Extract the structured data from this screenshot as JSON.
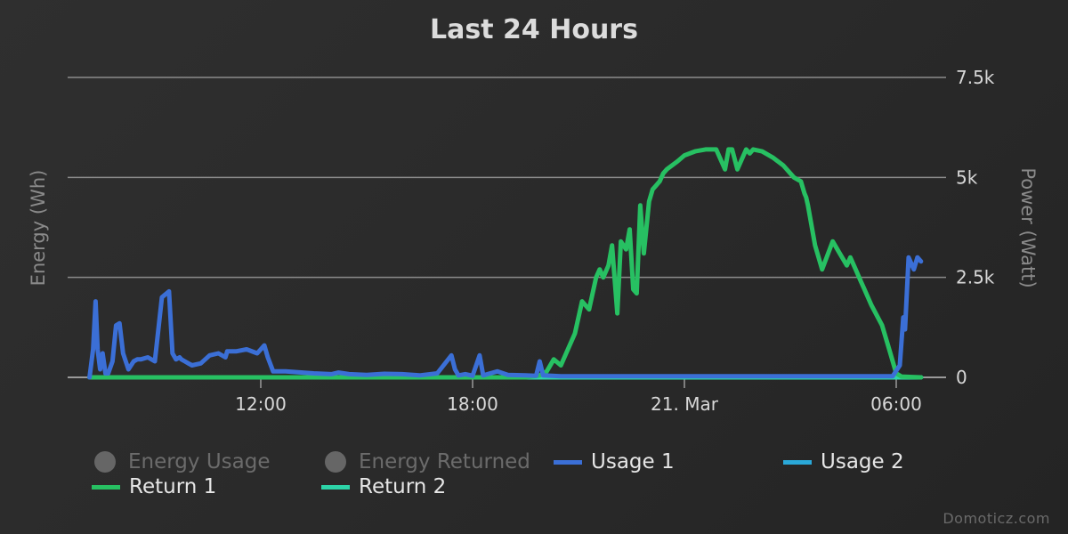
{
  "chart_data": {
    "type": "line",
    "title": "Last 24 Hours",
    "ylabel_left": "Energy (Wh)",
    "ylabel_right": "Power (Watt)",
    "ylim": [
      0,
      7500
    ],
    "yticks": [
      {
        "value": 0,
        "label": "0"
      },
      {
        "value": 2500,
        "label": "2.5k"
      },
      {
        "value": 5000,
        "label": "5k"
      },
      {
        "value": 7500,
        "label": "7.5k"
      }
    ],
    "xlim": [
      7.0,
      31.5
    ],
    "xticks": [
      {
        "value": 12,
        "label": "12:00"
      },
      {
        "value": 18,
        "label": "18:00"
      },
      {
        "value": 24,
        "label": "21. Mar"
      },
      {
        "value": 30,
        "label": "06:00"
      }
    ],
    "grid": true,
    "legend_position": "bottom",
    "legend": [
      {
        "label": "Energy Usage",
        "hidden": true
      },
      {
        "label": "Energy Returned",
        "hidden": true
      },
      {
        "label": "Usage 1",
        "hidden": false
      },
      {
        "label": "Usage 2",
        "hidden": false
      },
      {
        "label": "Return 1",
        "hidden": false
      },
      {
        "label": "Return 2",
        "hidden": false
      }
    ],
    "series": [
      {
        "name": "Usage 1",
        "color": "#3b6fd6",
        "x": [
          7.15,
          7.25,
          7.32,
          7.38,
          7.45,
          7.52,
          7.6,
          7.68,
          7.8,
          7.9,
          8.0,
          8.1,
          8.25,
          8.4,
          8.5,
          8.6,
          8.8,
          9.0,
          9.2,
          9.4,
          9.5,
          9.6,
          9.7,
          9.75,
          9.85,
          9.95,
          10.05,
          10.3,
          10.55,
          10.8,
          11.0,
          11.05,
          11.3,
          11.6,
          11.9,
          12.1,
          12.2,
          12.35,
          12.5,
          12.7,
          13.5,
          14.0,
          14.2,
          14.5,
          15.0,
          15.5,
          16.0,
          16.5,
          17.0,
          17.4,
          17.5,
          17.6,
          17.8,
          18.0,
          18.2,
          18.3,
          18.5,
          18.7,
          19.0,
          19.5,
          19.8,
          19.9,
          20.0,
          20.5,
          22.0,
          25.0,
          28.0,
          29.9,
          30.1,
          30.2,
          30.25,
          30.35,
          30.5,
          30.6,
          30.7
        ],
        "values": [
          0,
          700,
          1900,
          700,
          200,
          600,
          100,
          100,
          400,
          1300,
          1350,
          600,
          200,
          400,
          450,
          450,
          500,
          400,
          2000,
          2150,
          600,
          450,
          500,
          450,
          400,
          350,
          300,
          350,
          550,
          600,
          500,
          650,
          650,
          700,
          600,
          800,
          500,
          150,
          150,
          150,
          100,
          80,
          120,
          80,
          60,
          90,
          80,
          50,
          100,
          550,
          200,
          50,
          80,
          40,
          550,
          50,
          100,
          150,
          60,
          50,
          40,
          400,
          50,
          30,
          30,
          30,
          30,
          30,
          300,
          1500,
          1200,
          3000,
          2700,
          3000,
          2900
        ]
      },
      {
        "name": "Usage 2",
        "color": "#2aa8d8",
        "x": [
          7.15,
          30.7
        ],
        "values": [
          0,
          0
        ]
      },
      {
        "name": "Return 1",
        "color": "#27c062",
        "x": [
          7.15,
          19.5,
          19.9,
          20.1,
          20.3,
          20.5,
          20.7,
          20.9,
          21.1,
          21.3,
          21.5,
          21.6,
          21.7,
          21.85,
          21.95,
          22.1,
          22.2,
          22.35,
          22.45,
          22.55,
          22.65,
          22.75,
          22.85,
          23.0,
          23.1,
          23.2,
          23.3,
          23.4,
          23.5,
          23.8,
          24.0,
          24.3,
          24.6,
          24.9,
          25.15,
          25.25,
          25.35,
          25.5,
          25.75,
          25.85,
          25.95,
          26.2,
          26.5,
          26.8,
          27.1,
          27.3,
          27.4,
          27.45,
          27.5,
          27.7,
          27.9,
          28.2,
          28.4,
          28.6,
          28.7,
          28.85,
          29.0,
          29.1,
          29.3,
          29.6,
          29.8,
          30.0,
          30.15,
          30.7
        ],
        "values": [
          0,
          0,
          50,
          150,
          450,
          300,
          700,
          1100,
          1900,
          1700,
          2500,
          2700,
          2500,
          2800,
          3300,
          1600,
          3400,
          3200,
          3700,
          2200,
          2100,
          4300,
          3100,
          4400,
          4700,
          4800,
          4900,
          5100,
          5200,
          5400,
          5550,
          5650,
          5700,
          5700,
          5200,
          5700,
          5700,
          5200,
          5700,
          5600,
          5700,
          5650,
          5500,
          5300,
          5000,
          4900,
          4600,
          4500,
          4300,
          3300,
          2700,
          3400,
          3100,
          2800,
          3000,
          2700,
          2400,
          2200,
          1800,
          1300,
          700,
          100,
          20,
          0
        ]
      },
      {
        "name": "Return 2",
        "color": "#2dd4a8",
        "x": [
          7.15,
          30.7
        ],
        "values": [
          0,
          0
        ]
      }
    ]
  },
  "credits": "Domoticz.com"
}
